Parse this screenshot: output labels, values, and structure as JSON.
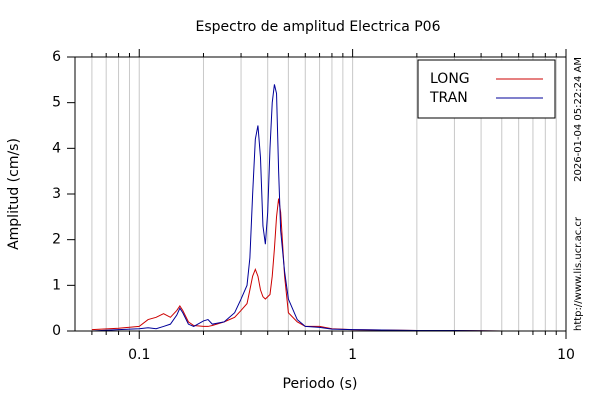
{
  "chart_data": {
    "type": "line",
    "title": "Espectro de amplitud Electrica P06",
    "x_label": "Periodo (s)",
    "y_label": "Amplitud (cm/s)",
    "side_texts": [
      "2026-01-04 05:22:24 AM",
      "http://www.lis.ucr.ac.cr"
    ],
    "x": [
      0.06,
      0.08,
      0.1,
      0.11,
      0.12,
      0.13,
      0.14,
      0.15,
      0.155,
      0.16,
      0.17,
      0.18,
      0.2,
      0.21,
      0.22,
      0.25,
      0.28,
      0.3,
      0.32,
      0.33,
      0.34,
      0.35,
      0.36,
      0.37,
      0.38,
      0.39,
      0.4,
      0.41,
      0.42,
      0.43,
      0.44,
      0.45,
      0.46,
      0.48,
      0.5,
      0.55,
      0.6,
      0.7,
      0.8,
      1,
      1.5,
      2,
      3,
      5,
      10
    ],
    "series": [
      {
        "name": "LONG",
        "color": "#cc0000",
        "values": [
          0.03,
          0.06,
          0.1,
          0.25,
          0.3,
          0.38,
          0.3,
          0.45,
          0.55,
          0.45,
          0.2,
          0.12,
          0.1,
          0.1,
          0.12,
          0.2,
          0.3,
          0.45,
          0.6,
          0.9,
          1.2,
          1.35,
          1.2,
          0.9,
          0.75,
          0.7,
          0.75,
          0.8,
          1.2,
          1.8,
          2.5,
          2.9,
          2.6,
          1.2,
          0.4,
          0.2,
          0.1,
          0.1,
          0.05,
          0.03,
          0.02,
          0.01,
          0.01,
          0,
          0
        ]
      },
      {
        "name": "TRAN",
        "color": "#000099",
        "values": [
          0,
          0.03,
          0.05,
          0.07,
          0.05,
          0.1,
          0.15,
          0.35,
          0.5,
          0.4,
          0.15,
          0.1,
          0.22,
          0.25,
          0.15,
          0.2,
          0.4,
          0.7,
          1.0,
          1.6,
          3.0,
          4.2,
          4.5,
          3.8,
          2.3,
          1.9,
          2.6,
          4.0,
          5.0,
          5.4,
          5.2,
          3.5,
          2.2,
          1.3,
          0.7,
          0.25,
          0.1,
          0.08,
          0.04,
          0.03,
          0.02,
          0.01,
          0.01,
          0,
          0
        ]
      }
    ],
    "xlim": [
      0.05,
      10
    ],
    "xlog": true,
    "xticks": [
      0.1,
      1,
      10
    ],
    "xminorticks": [
      0.06,
      0.07,
      0.08,
      0.09,
      0.2,
      0.3,
      0.4,
      0.5,
      0.6,
      0.7,
      0.8,
      0.9,
      2,
      3,
      4,
      5,
      6,
      7,
      8,
      9
    ],
    "ylim": [
      0,
      6
    ],
    "yticks": [
      0,
      1,
      2,
      3,
      4,
      5,
      6
    ],
    "xgrid": true,
    "legend": "upper right"
  }
}
